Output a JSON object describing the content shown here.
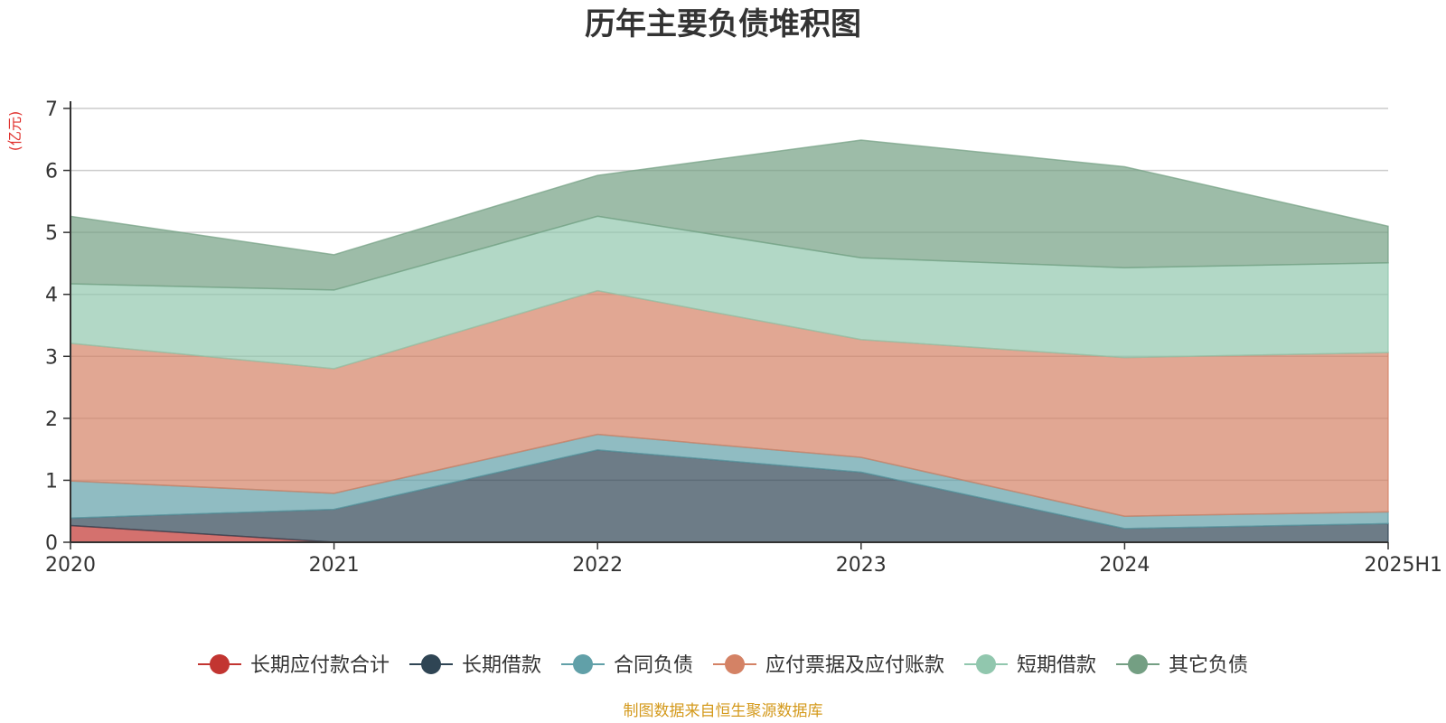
{
  "chart_data": {
    "type": "area",
    "stacked": true,
    "title": "历年主要负债堆积图",
    "unit_label": "(亿元)",
    "categories": [
      "2020",
      "2021",
      "2022",
      "2023",
      "2024",
      "2025H1"
    ],
    "ylim": [
      0,
      7
    ],
    "yticks": [
      "0",
      "1",
      "2",
      "3",
      "4",
      "5",
      "6",
      "7"
    ],
    "grid": true,
    "legend_position": "bottom",
    "series": [
      {
        "name": "长期应付款合计",
        "color": "#c23531",
        "values": [
          0.27,
          0,
          0,
          0,
          0,
          0
        ]
      },
      {
        "name": "长期借款",
        "color": "#2f4554",
        "values": [
          0.12,
          0.53,
          1.49,
          1.13,
          0.22,
          0.3
        ]
      },
      {
        "name": "合同负债",
        "color": "#61a0a8",
        "values": [
          0.6,
          0.26,
          0.25,
          0.24,
          0.2,
          0.19
        ]
      },
      {
        "name": "应付票据及应付账款",
        "color": "#d48265",
        "values": [
          2.22,
          2.01,
          2.32,
          1.9,
          2.56,
          2.57
        ]
      },
      {
        "name": "短期借款",
        "color": "#91c7ae",
        "values": [
          0.96,
          1.27,
          1.2,
          1.32,
          1.45,
          1.45
        ]
      },
      {
        "name": "其它负债",
        "color": "#749f83",
        "values": [
          1.09,
          0.57,
          0.66,
          1.9,
          1.63,
          0.59
        ]
      }
    ],
    "source_note": "制图数据来自恒生聚源数据库"
  }
}
